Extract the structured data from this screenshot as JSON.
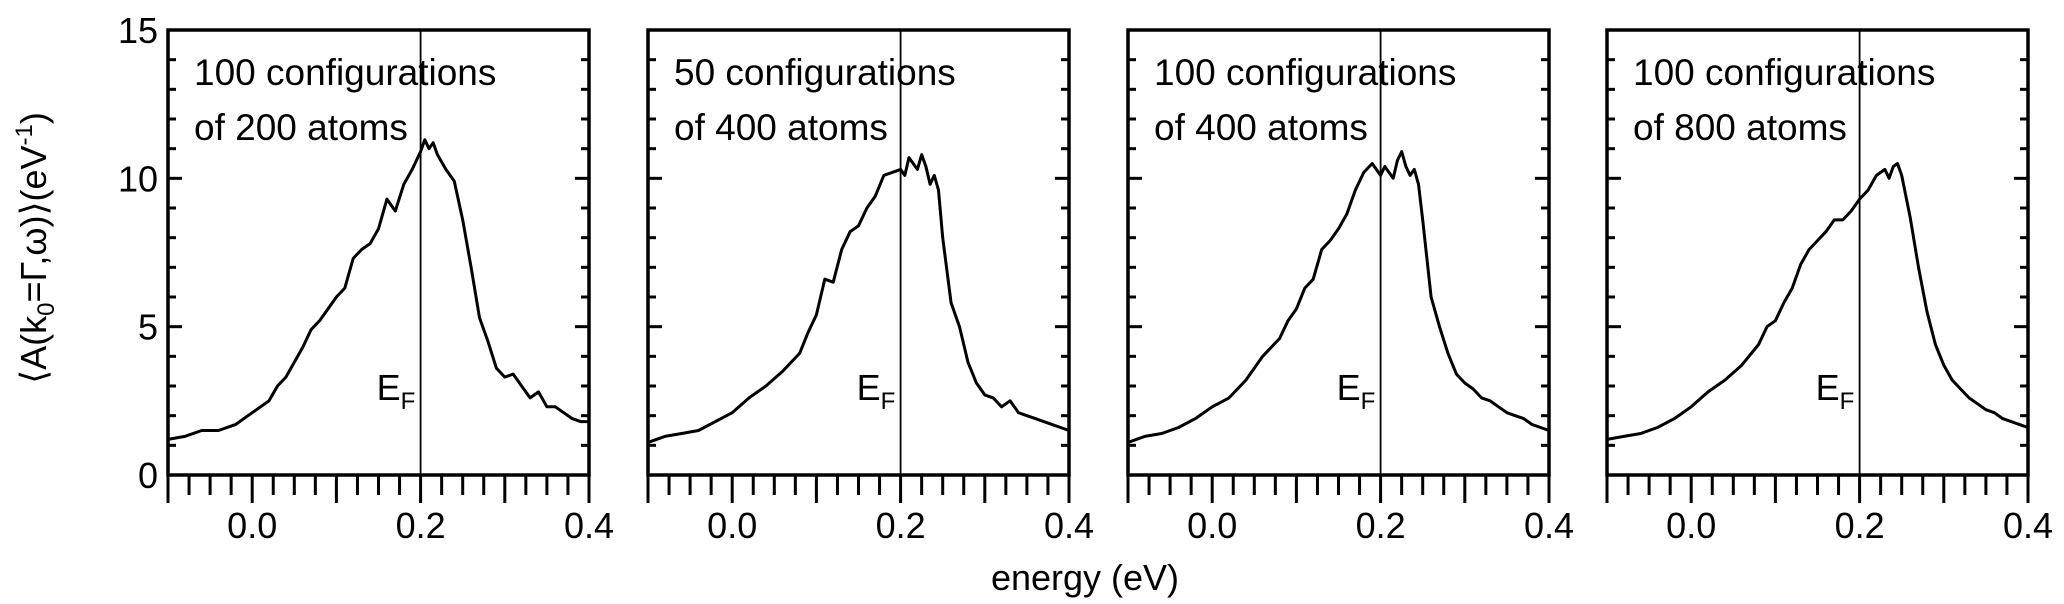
{
  "chart_data": {
    "type": "line",
    "xlabel": "energy (eV)",
    "ylabel": "⟨A(k₀=Γ,ω)⟩(eV⁻¹)",
    "ylabel_parts": {
      "a": "⟨A(k",
      "sub": "0",
      "b": "=Γ,ω)⟩(eV",
      "sup": "-1",
      "c": ")"
    },
    "xlim": [
      -0.1,
      0.4
    ],
    "ylim": [
      0,
      15
    ],
    "x_ticks": [
      "0.0",
      "0.2",
      "0.4"
    ],
    "y_ticks": [
      "0",
      "5",
      "10",
      "15"
    ],
    "fermi_line_x": 0.2,
    "fermi_label": "E",
    "fermi_label_sub": "F",
    "panels": [
      {
        "label_line1": "100 configurations",
        "label_line2": "of 200 atoms",
        "x": [
          -0.1,
          -0.08,
          -0.06,
          -0.04,
          -0.02,
          0.0,
          0.02,
          0.03,
          0.04,
          0.05,
          0.06,
          0.07,
          0.08,
          0.09,
          0.1,
          0.11,
          0.12,
          0.13,
          0.14,
          0.15,
          0.16,
          0.17,
          0.18,
          0.19,
          0.2,
          0.205,
          0.21,
          0.215,
          0.22,
          0.23,
          0.24,
          0.25,
          0.26,
          0.27,
          0.28,
          0.29,
          0.3,
          0.31,
          0.32,
          0.33,
          0.34,
          0.35,
          0.36,
          0.37,
          0.38,
          0.39,
          0.4
        ],
        "y": [
          1.2,
          1.3,
          1.5,
          1.5,
          1.7,
          2.1,
          2.5,
          3.0,
          3.3,
          3.8,
          4.3,
          4.9,
          5.2,
          5.6,
          6.0,
          6.3,
          7.3,
          7.6,
          7.8,
          8.3,
          9.3,
          8.9,
          9.8,
          10.3,
          10.9,
          11.3,
          11.0,
          11.2,
          10.8,
          10.3,
          9.9,
          8.6,
          7.0,
          5.3,
          4.5,
          3.6,
          3.3,
          3.4,
          3.0,
          2.6,
          2.8,
          2.3,
          2.3,
          2.1,
          1.9,
          1.8,
          1.8
        ]
      },
      {
        "label_line1": "50 configurations",
        "label_line2": "of 400 atoms",
        "x": [
          -0.1,
          -0.08,
          -0.06,
          -0.04,
          -0.02,
          0.0,
          0.02,
          0.04,
          0.06,
          0.08,
          0.09,
          0.1,
          0.11,
          0.12,
          0.13,
          0.14,
          0.15,
          0.16,
          0.17,
          0.18,
          0.19,
          0.2,
          0.205,
          0.21,
          0.215,
          0.22,
          0.225,
          0.23,
          0.235,
          0.24,
          0.245,
          0.25,
          0.26,
          0.27,
          0.28,
          0.29,
          0.3,
          0.31,
          0.32,
          0.33,
          0.34,
          0.35,
          0.36,
          0.37,
          0.38,
          0.39,
          0.4
        ],
        "y": [
          1.1,
          1.3,
          1.4,
          1.5,
          1.8,
          2.1,
          2.6,
          3.0,
          3.5,
          4.1,
          4.8,
          5.4,
          6.6,
          6.5,
          7.6,
          8.2,
          8.4,
          9.0,
          9.4,
          10.1,
          10.2,
          10.3,
          10.1,
          10.7,
          10.5,
          10.3,
          10.8,
          10.4,
          9.8,
          10.1,
          9.6,
          8.0,
          5.8,
          5.0,
          3.8,
          3.1,
          2.7,
          2.6,
          2.3,
          2.5,
          2.1,
          2.0,
          1.9,
          1.8,
          1.7,
          1.6,
          1.5
        ]
      },
      {
        "label_line1": "100 configurations",
        "label_line2": "of 400 atoms",
        "x": [
          -0.1,
          -0.08,
          -0.06,
          -0.04,
          -0.02,
          0.0,
          0.02,
          0.04,
          0.06,
          0.08,
          0.09,
          0.1,
          0.11,
          0.12,
          0.13,
          0.14,
          0.15,
          0.16,
          0.17,
          0.18,
          0.19,
          0.2,
          0.205,
          0.21,
          0.215,
          0.22,
          0.225,
          0.23,
          0.235,
          0.24,
          0.245,
          0.25,
          0.26,
          0.27,
          0.28,
          0.29,
          0.3,
          0.31,
          0.32,
          0.33,
          0.34,
          0.35,
          0.36,
          0.37,
          0.38,
          0.39,
          0.4
        ],
        "y": [
          1.1,
          1.3,
          1.4,
          1.6,
          1.9,
          2.3,
          2.6,
          3.2,
          4.0,
          4.6,
          5.2,
          5.6,
          6.3,
          6.6,
          7.6,
          7.9,
          8.3,
          8.8,
          9.6,
          10.2,
          10.5,
          10.1,
          10.4,
          10.2,
          10.0,
          10.6,
          10.9,
          10.4,
          10.1,
          10.3,
          9.8,
          8.6,
          6.0,
          5.0,
          4.1,
          3.4,
          3.1,
          2.9,
          2.6,
          2.5,
          2.3,
          2.1,
          2.0,
          1.9,
          1.7,
          1.6,
          1.5
        ]
      },
      {
        "label_line1": "100 configurations",
        "label_line2": "of 800 atoms",
        "x": [
          -0.1,
          -0.08,
          -0.06,
          -0.04,
          -0.02,
          0.0,
          0.02,
          0.04,
          0.06,
          0.08,
          0.09,
          0.1,
          0.11,
          0.12,
          0.13,
          0.14,
          0.15,
          0.16,
          0.17,
          0.18,
          0.19,
          0.2,
          0.21,
          0.22,
          0.23,
          0.235,
          0.24,
          0.245,
          0.25,
          0.26,
          0.27,
          0.28,
          0.29,
          0.3,
          0.31,
          0.32,
          0.33,
          0.34,
          0.35,
          0.36,
          0.37,
          0.38,
          0.39,
          0.4
        ],
        "y": [
          1.2,
          1.3,
          1.4,
          1.6,
          1.9,
          2.3,
          2.8,
          3.2,
          3.7,
          4.4,
          5.0,
          5.2,
          5.8,
          6.3,
          7.1,
          7.6,
          7.9,
          8.2,
          8.6,
          8.6,
          8.9,
          9.3,
          9.6,
          10.1,
          10.3,
          10.0,
          10.4,
          10.5,
          10.1,
          8.7,
          7.0,
          5.5,
          4.4,
          3.7,
          3.2,
          2.9,
          2.6,
          2.4,
          2.2,
          2.1,
          1.9,
          1.8,
          1.7,
          1.6
        ]
      }
    ]
  }
}
